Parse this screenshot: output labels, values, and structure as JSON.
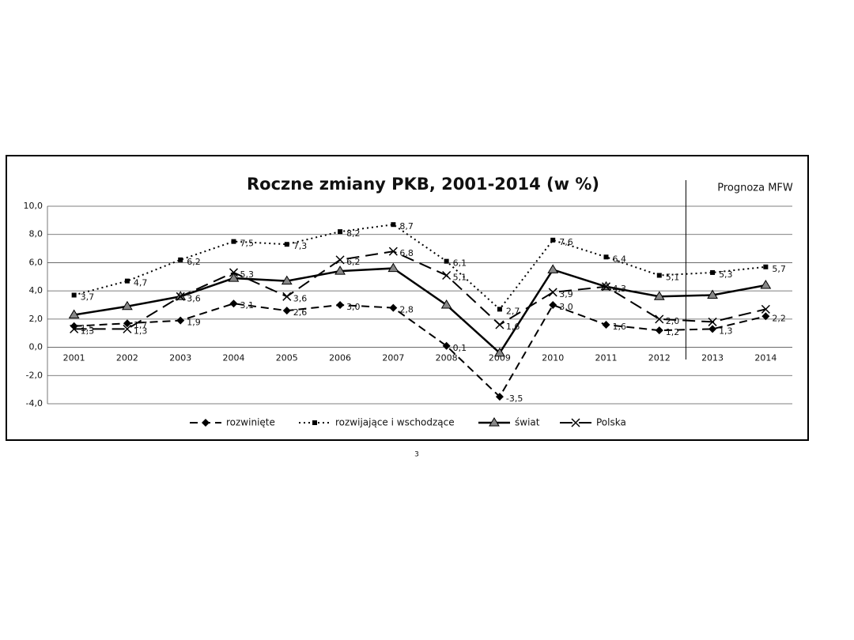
{
  "chart_data": {
    "type": "line",
    "title": "Roczne zmiany PKB, 2001-2014 (w %)",
    "annotation": "Prognoza MFW",
    "categories": [
      "2001",
      "2002",
      "2003",
      "2004",
      "2005",
      "2006",
      "2007",
      "2008",
      "2009",
      "2010",
      "2011",
      "2012",
      "2013",
      "2014"
    ],
    "series": [
      {
        "name": "rozwinięte",
        "color": "#000000",
        "values": [
          1.5,
          1.7,
          1.9,
          3.1,
          2.6,
          3.0,
          2.8,
          0.1,
          -3.5,
          3.0,
          1.6,
          1.2,
          1.3,
          2.2
        ],
        "value_labels": [
          "1,5",
          "1,7",
          "1,9",
          "3,1",
          "2,6",
          "3,0",
          "2,8",
          "0,1",
          "-3,5",
          "3,0",
          "1,6",
          "1,2",
          "1,3",
          "2,2"
        ]
      },
      {
        "name": "rozwijające i wschodzące",
        "color": "#000000",
        "values": [
          3.7,
          4.7,
          6.2,
          7.5,
          7.3,
          8.2,
          8.7,
          6.1,
          2.7,
          7.6,
          6.4,
          5.1,
          5.3,
          5.7
        ],
        "value_labels": [
          "3,7",
          "4,7",
          "6,2",
          "7,5",
          "7,3",
          "8,2",
          "8,7",
          "6,1",
          "2,7",
          "7,6",
          "6,4",
          "5,1",
          "5,3",
          "5,7"
        ]
      },
      {
        "name": "świat",
        "color": "#000000",
        "values": [
          2.3,
          2.9,
          3.6,
          4.9,
          4.7,
          5.4,
          5.6,
          3.0,
          -0.4,
          5.5,
          4.3,
          3.6,
          3.7,
          4.4
        ]
      },
      {
        "name": "Polska",
        "color": "#000000",
        "values": [
          1.3,
          1.3,
          3.6,
          5.3,
          3.6,
          6.2,
          6.8,
          5.1,
          1.6,
          3.9,
          4.3,
          2.0,
          1.8,
          2.7
        ],
        "value_labels": [
          "1,3",
          "1,3",
          "3,6",
          "5,3",
          "3,6",
          "6,2",
          "6,8",
          "5,1",
          "1,6",
          "3,9",
          "4,3",
          "2,0",
          null,
          null
        ]
      }
    ],
    "ylim": [
      -4,
      10
    ],
    "yticks": [
      {
        "value": -4,
        "label": "-4,0"
      },
      {
        "value": -2,
        "label": "-2,0"
      },
      {
        "value": 0,
        "label": "0,0"
      },
      {
        "value": 2,
        "label": "2,0"
      },
      {
        "value": 4,
        "label": "4,0"
      },
      {
        "value": 6,
        "label": "6,0"
      },
      {
        "value": 8,
        "label": "8,0"
      },
      {
        "value": 10,
        "label": "10,0"
      }
    ],
    "grid": true
  },
  "footer": "3"
}
